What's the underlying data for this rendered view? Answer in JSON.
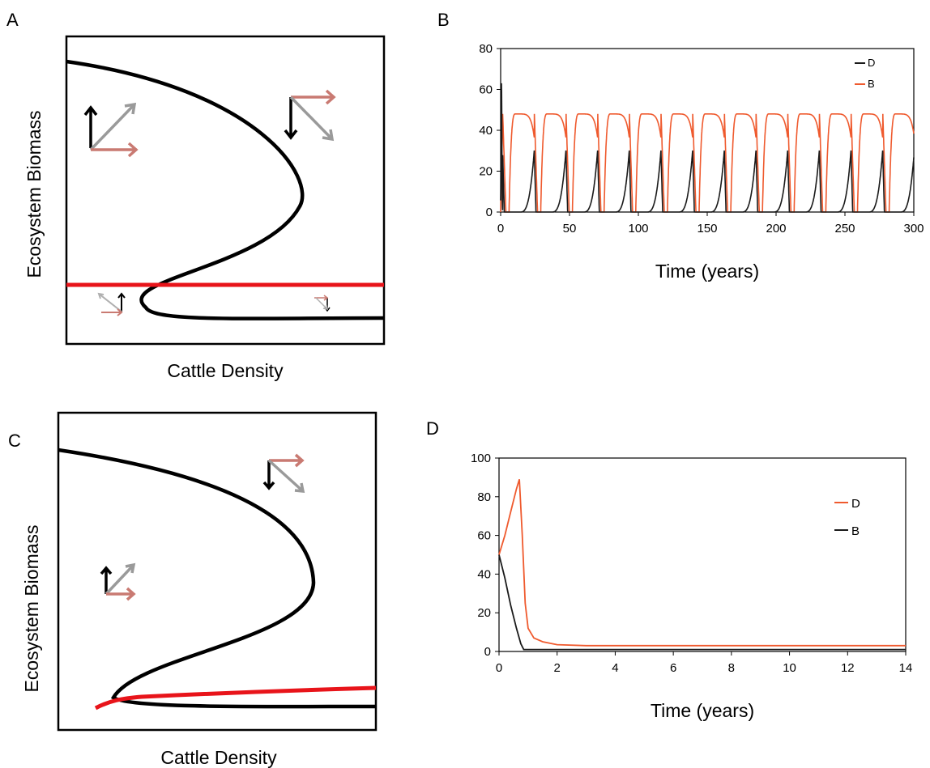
{
  "chart_data": [
    {
      "panel": "A",
      "type": "line",
      "xlabel": "Cattle Density",
      "ylabel": "Ecosystem Biomass",
      "series": [
        {
          "name": "",
          "color": "#000000",
          "curve": "s-fold"
        },
        {
          "name": "",
          "color": "#e8141a",
          "curve": "flat"
        }
      ]
    },
    {
      "panel": "B",
      "type": "line",
      "xlabel": "Time (years)",
      "ylabel": "",
      "xlim": [
        0,
        300
      ],
      "ylim": [
        0,
        80
      ],
      "xticks": [
        "0",
        "50",
        "100",
        "150",
        "200",
        "250",
        "300"
      ],
      "yticks": [
        "0",
        "20",
        "40",
        "60",
        "80"
      ],
      "legend_position": "top-right",
      "series": [
        {
          "name": "D",
          "color": "#1a1a1a",
          "pattern": "periodic spikes",
          "period": 23,
          "peak": 31,
          "initial_peak": 63
        },
        {
          "name": "B",
          "color": "#ef5a2e",
          "pattern": "periodic humps",
          "period": 23,
          "peak": 48
        }
      ]
    },
    {
      "panel": "C",
      "type": "line",
      "xlabel": "Cattle Density",
      "ylabel": "Ecosystem Biomass",
      "series": [
        {
          "name": "",
          "color": "#000000",
          "curve": "c-fold"
        },
        {
          "name": "",
          "color": "#e8141a",
          "curve": "rising"
        }
      ]
    },
    {
      "panel": "D",
      "type": "line",
      "xlabel": "Time (years)",
      "ylabel": "",
      "xlim": [
        0,
        14
      ],
      "ylim": [
        0,
        100
      ],
      "xticks": [
        "0",
        "2",
        "4",
        "6",
        "8",
        "10",
        "12",
        "14"
      ],
      "yticks": [
        "0",
        "20",
        "40",
        "60",
        "80",
        "100"
      ],
      "legend_position": "right",
      "series": [
        {
          "name": "D",
          "color": "#ef5a2e",
          "x": [
            0,
            0.2,
            0.4,
            0.6,
            0.7,
            0.8,
            0.9,
            1.0,
            1.2,
            1.5,
            2,
            3,
            4,
            6,
            8,
            10,
            12,
            14
          ],
          "y": [
            50,
            60,
            72,
            84,
            89,
            60,
            25,
            12,
            7,
            5,
            3.5,
            3,
            3,
            3,
            3,
            3,
            3,
            3
          ]
        },
        {
          "name": "B",
          "color": "#1a1a1a",
          "x": [
            0,
            0.2,
            0.4,
            0.6,
            0.75,
            0.85,
            1.0,
            2,
            4,
            6,
            8,
            10,
            12,
            14
          ],
          "y": [
            50,
            38,
            24,
            12,
            4,
            1,
            1,
            1,
            1,
            1,
            1,
            1,
            1,
            1
          ]
        }
      ]
    }
  ]
}
